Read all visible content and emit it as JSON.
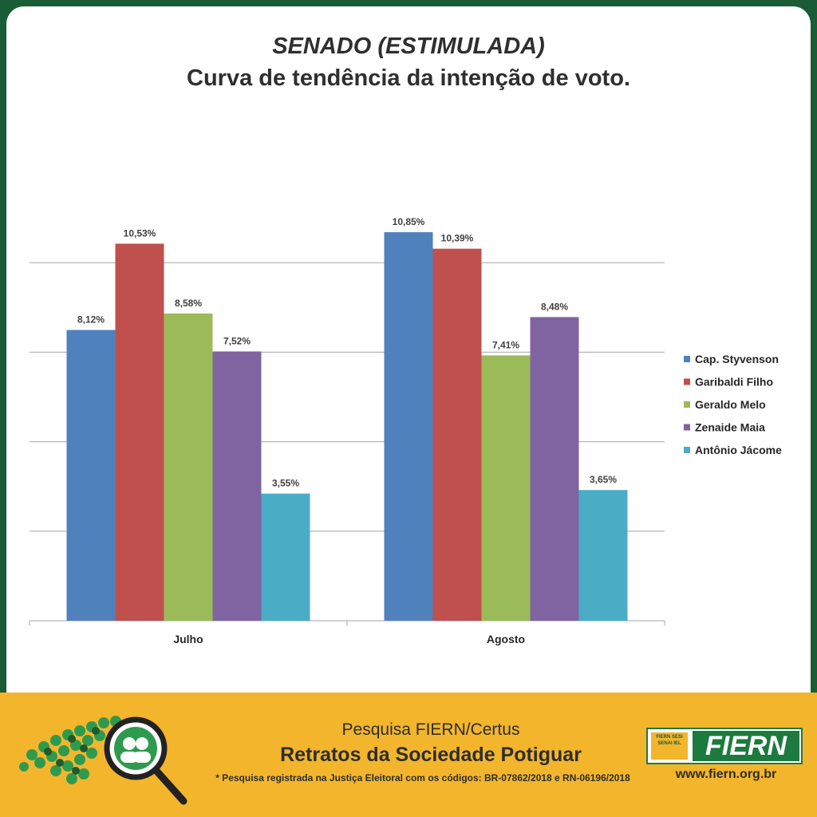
{
  "title": {
    "line1": "SENADO (ESTIMULADA)",
    "line2": "Curva de tendência da intenção de voto."
  },
  "chart_data": {
    "type": "bar",
    "categories": [
      "Julho",
      "Agosto"
    ],
    "ylim": [
      0,
      12.5
    ],
    "grid": true,
    "legend_position": "right",
    "series": [
      {
        "name": "Cap. Styvenson",
        "color": "#4f81bd",
        "values": [
          8.12,
          10.85
        ],
        "labels": [
          "8,12%",
          "10,85%"
        ]
      },
      {
        "name": "Garibaldi Filho",
        "color": "#c0504d",
        "values": [
          10.53,
          10.39
        ],
        "labels": [
          "10,53%",
          "10,39%"
        ]
      },
      {
        "name": "Geraldo Melo",
        "color": "#9bbb59",
        "values": [
          8.58,
          7.41
        ],
        "labels": [
          "8,58%",
          "7,41%"
        ]
      },
      {
        "name": "Zenaide Maia",
        "color": "#8064a2",
        "values": [
          7.52,
          8.48
        ],
        "labels": [
          "7,52%",
          "8,48%"
        ]
      },
      {
        "name": "Antônio Jácome",
        "color": "#4bacc6",
        "values": [
          3.55,
          3.65
        ],
        "labels": [
          "3,55%",
          "3,65%"
        ]
      }
    ]
  },
  "footer": {
    "subtitle": "Pesquisa FIERN/Certus",
    "main": "Retratos da Sociedade Potiguar",
    "note": "* Pesquisa registrada na Justiça Eleitoral com os códigos: BR-07862/2018 e RN-06196/2018",
    "logo_mini": "FIERN SESI SENAI IEL",
    "logo_text": "FIERN",
    "url": "www.fiern.org.br"
  },
  "colors": {
    "frame": "#1a5c36",
    "footer_bg": "#f2b52c",
    "brand_green": "#1d7a3f"
  }
}
